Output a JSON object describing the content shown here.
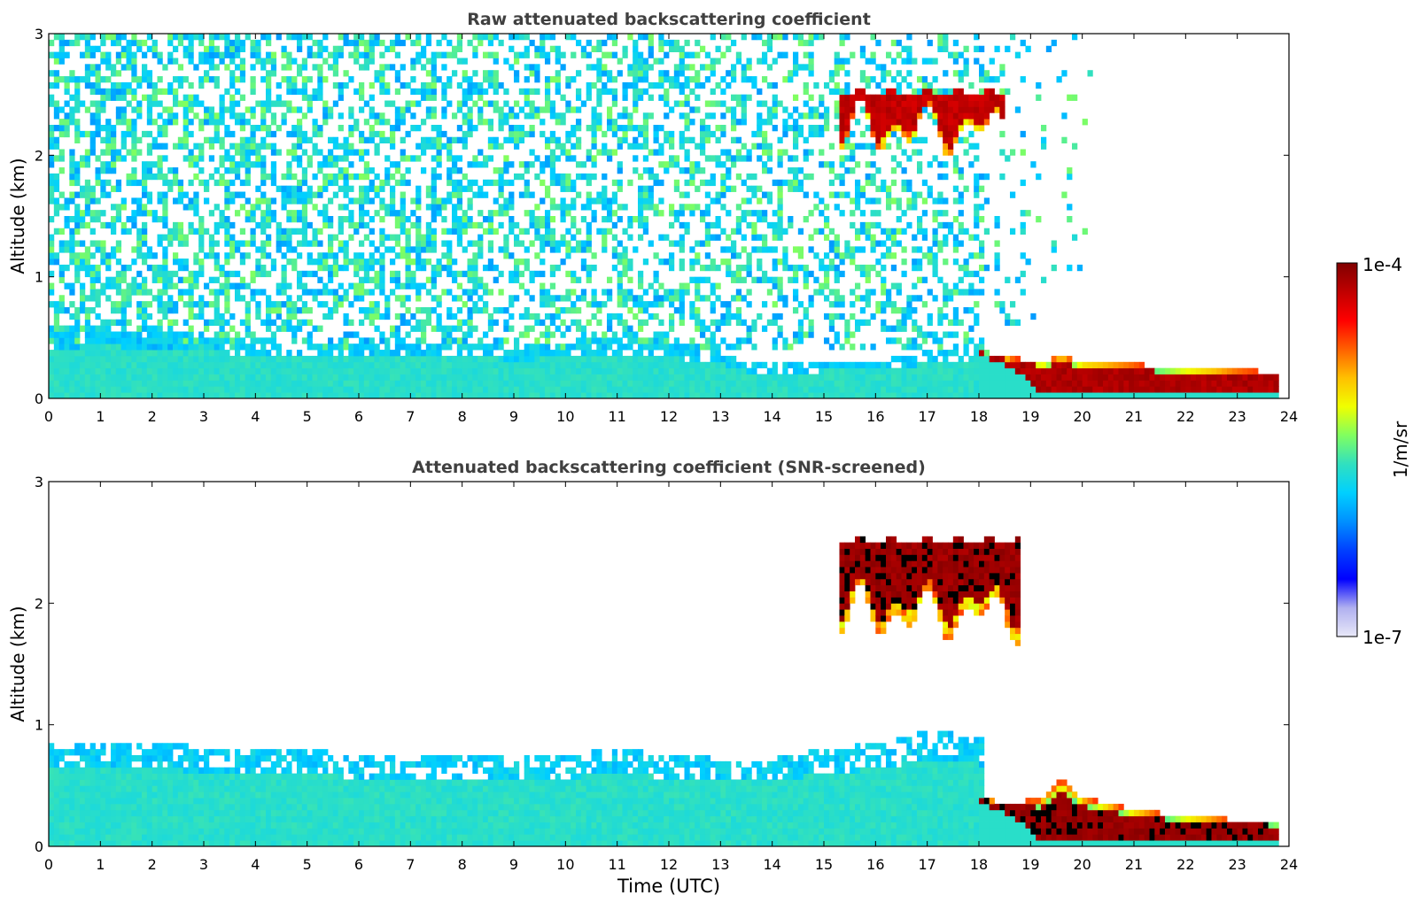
{
  "chart_data": [
    {
      "type": "heatmap",
      "title": "Raw attenuated backscattering coefficient",
      "xlabel": "",
      "ylabel": "Altitude (km)",
      "xlim": [
        0,
        24
      ],
      "ylim": [
        0,
        3
      ],
      "xticks": [
        "0",
        "1",
        "2",
        "3",
        "4",
        "5",
        "6",
        "7",
        "8",
        "9",
        "10",
        "11",
        "12",
        "13",
        "14",
        "15",
        "16",
        "17",
        "18",
        "19",
        "20",
        "21",
        "22",
        "23",
        "24"
      ],
      "yticks": [
        "0",
        "1",
        "2",
        "3"
      ],
      "layers": [
        {
          "feature": "boundary-layer",
          "x": [
            0,
            1,
            2,
            3,
            4,
            5,
            6,
            7,
            8,
            9,
            10,
            11,
            12,
            13,
            13.5,
            14,
            15,
            16,
            17,
            18.05
          ],
          "top": [
            0.55,
            0.58,
            0.55,
            0.52,
            0.48,
            0.47,
            0.45,
            0.44,
            0.47,
            0.42,
            0.45,
            0.5,
            0.45,
            0.38,
            0.3,
            0.28,
            0.3,
            0.32,
            0.38,
            0.45
          ],
          "level": 0.45
        },
        {
          "feature": "noise-dense",
          "x_range": [
            0,
            18.05
          ],
          "y_range": [
            0.4,
            3.0
          ],
          "density": [
            0.55,
            0.35
          ]
        },
        {
          "feature": "noise-sparse",
          "x_range": [
            18.05,
            20.2
          ],
          "y_range": [
            0.6,
            3.0
          ],
          "density": [
            0.15,
            0.02
          ]
        },
        {
          "feature": "cloud",
          "x_range": [
            15.3,
            18.5
          ],
          "base": 2.2,
          "top": 2.55,
          "level": 0.95
        },
        {
          "feature": "low-cloud",
          "x": [
            18.05,
            18.5,
            19,
            19.2,
            19.6,
            20,
            21,
            22,
            23,
            23.8
          ],
          "top": [
            0.4,
            0.33,
            0.32,
            0.3,
            0.35,
            0.3,
            0.28,
            0.25,
            0.23,
            0.22
          ],
          "base": [
            0.35,
            0.28,
            0.15,
            0.05,
            0.05,
            0.05,
            0.05,
            0.05,
            0.05,
            0.05
          ],
          "level": 0.97
        }
      ]
    },
    {
      "type": "heatmap",
      "title": "Attenuated backscattering coefficient (SNR-screened)",
      "xlabel": "Time (UTC)",
      "ylabel": "Altitude (km)",
      "xlim": [
        0,
        24
      ],
      "ylim": [
        0,
        3
      ],
      "xticks": [
        "0",
        "1",
        "2",
        "3",
        "4",
        "5",
        "6",
        "7",
        "8",
        "9",
        "10",
        "11",
        "12",
        "13",
        "14",
        "15",
        "16",
        "17",
        "18",
        "19",
        "20",
        "21",
        "22",
        "23",
        "24"
      ],
      "yticks": [
        "0",
        "1",
        "2",
        "3"
      ],
      "layers": [
        {
          "feature": "boundary-layer",
          "x": [
            0,
            1,
            2,
            3,
            4,
            5,
            6,
            7,
            8,
            9,
            10,
            11,
            12,
            13,
            13.5,
            14,
            15,
            16,
            17,
            18.05
          ],
          "top": [
            0.85,
            0.85,
            0.85,
            0.82,
            0.78,
            0.8,
            0.75,
            0.72,
            0.75,
            0.72,
            0.75,
            0.8,
            0.75,
            0.72,
            0.7,
            0.72,
            0.8,
            0.85,
            0.95,
            0.9
          ],
          "level": 0.45
        },
        {
          "feature": "cloud",
          "x_range": [
            15.3,
            18.8
          ],
          "base": 1.9,
          "top": 2.55,
          "level": 1.0
        },
        {
          "feature": "low-cloud",
          "x": [
            18.05,
            18.5,
            19,
            19.2,
            19.6,
            20,
            21,
            22,
            23,
            23.8
          ],
          "top": [
            0.4,
            0.35,
            0.38,
            0.38,
            0.55,
            0.4,
            0.3,
            0.25,
            0.22,
            0.2
          ],
          "base": [
            0.35,
            0.28,
            0.15,
            0.05,
            0.05,
            0.05,
            0.05,
            0.05,
            0.05,
            0.05
          ],
          "level": 1.0
        }
      ]
    }
  ],
  "colorbar": {
    "label": "1/m/sr",
    "min_label": "1e-7",
    "max_label": "1e-4",
    "stops": [
      "#e8e8f8",
      "#b0b0f0",
      "#0000ff",
      "#0040ff",
      "#0090ff",
      "#00d0ff",
      "#30e0c0",
      "#80ff60",
      "#f0ff00",
      "#ffc000",
      "#ff6000",
      "#ff0000",
      "#c00000",
      "#800000"
    ]
  }
}
